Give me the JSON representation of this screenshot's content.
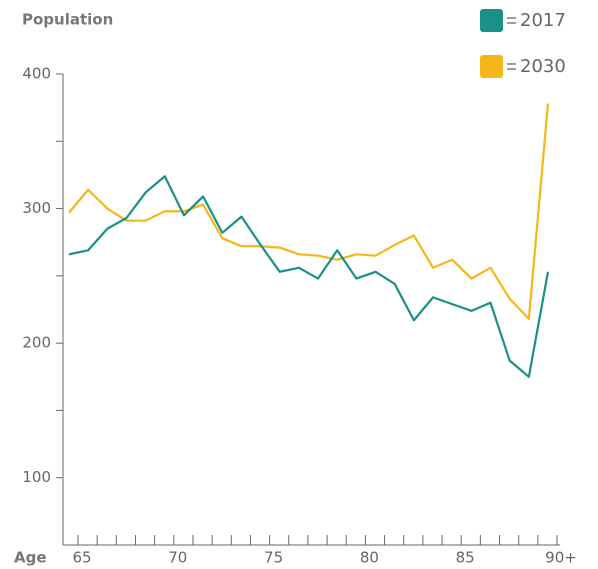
{
  "chart_data": {
    "type": "line",
    "title": "Population",
    "xlabel": "Age",
    "categories": [
      "65",
      null,
      null,
      null,
      null,
      "70",
      null,
      null,
      null,
      null,
      "75",
      null,
      null,
      null,
      null,
      "80",
      null,
      null,
      null,
      null,
      "85",
      null,
      null,
      null,
      null,
      "90+"
    ],
    "series": [
      {
        "name": "2017",
        "color": "#1a9087",
        "values": [
          266,
          269,
          285,
          293,
          312,
          324,
          295,
          309,
          282,
          294,
          273,
          253,
          256,
          248,
          269,
          248,
          253,
          244,
          217,
          234,
          229,
          224,
          230,
          187,
          175,
          253
        ]
      },
      {
        "name": "2030",
        "color": "#f5b619",
        "values": [
          297,
          314,
          300,
          291,
          291,
          298,
          298,
          303,
          278,
          272,
          272,
          271,
          266,
          265,
          262,
          266,
          265,
          273,
          280,
          256,
          262,
          248,
          256,
          233,
          218,
          378
        ]
      }
    ],
    "ylim": [
      50,
      400
    ],
    "yticks": [
      100,
      200,
      300,
      400
    ],
    "yminorticks": [
      150,
      250,
      350
    ]
  }
}
